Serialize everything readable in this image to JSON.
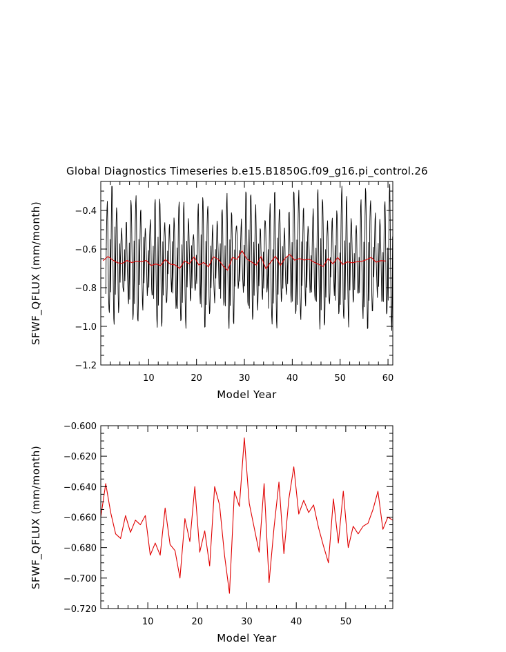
{
  "title": "Global Diagnostics Timeseries b.e15.B1850G.f09_g16.pi_control.26",
  "colors": {
    "monthly": "#000000",
    "annual": "#e00000",
    "axes": "#000000",
    "background": "#ffffff"
  },
  "chart_data": [
    {
      "type": "line",
      "xlabel": "Model Year",
      "ylabel": "SFWF_QFLUX (mm/month)",
      "xlim": [
        0.0,
        61.0
      ],
      "ylim": [
        -1.2,
        -0.25
      ],
      "xticks": [
        10,
        20,
        30,
        40,
        50,
        60
      ],
      "xtick_labels": [
        "10",
        "20",
        "30",
        "40",
        "50",
        "60"
      ],
      "yticks": [
        -1.2,
        -1.0,
        -0.8,
        -0.6,
        -0.4
      ],
      "ytick_labels": [
        "−1.2",
        "−1.0",
        "−0.8",
        "−0.6",
        "−0.4"
      ],
      "series": [
        {
          "color": "#000000",
          "x_start": 1.0417,
          "x_step": 0.08333,
          "seasonal_cycle": [
            -0.88,
            -0.72,
            -0.56,
            -0.46,
            -0.45,
            -0.56,
            -0.72,
            -0.86,
            -0.95,
            -0.96,
            -0.84,
            -0.63
          ],
          "annual_values": [
            -0.66,
            -0.638,
            -0.657,
            -0.671,
            -0.674,
            -0.659,
            -0.67,
            -0.662,
            -0.665,
            -0.659,
            -0.685,
            -0.677,
            -0.685,
            -0.654,
            -0.678,
            -0.682,
            -0.7,
            -0.661,
            -0.676,
            -0.64,
            -0.683,
            -0.669,
            -0.692,
            -0.64,
            -0.652,
            -0.685,
            -0.71,
            -0.643,
            -0.653,
            -0.608,
            -0.651,
            -0.667,
            -0.683,
            -0.638,
            -0.703,
            -0.667,
            -0.637,
            -0.684,
            -0.648,
            -0.627,
            -0.658,
            -0.649,
            -0.657,
            -0.652,
            -0.667,
            -0.679,
            -0.69,
            -0.648,
            -0.677,
            -0.643,
            -0.68,
            -0.666,
            -0.671,
            -0.666,
            -0.664,
            -0.655,
            -0.643,
            -0.668,
            -0.66,
            -0.662
          ]
        },
        {
          "color": "#e00000",
          "x": [
            0.5,
            1.5,
            2.5,
            3.5,
            4.5,
            5.5,
            6.5,
            7.5,
            8.5,
            9.5,
            10.5,
            11.5,
            12.5,
            13.5,
            14.5,
            15.5,
            16.5,
            17.5,
            18.5,
            19.5,
            20.5,
            21.5,
            22.5,
            23.5,
            24.5,
            25.5,
            26.5,
            27.5,
            28.5,
            29.5,
            30.5,
            31.5,
            32.5,
            33.5,
            34.5,
            35.5,
            36.5,
            37.5,
            38.5,
            39.5,
            40.5,
            41.5,
            42.5,
            43.5,
            44.5,
            45.5,
            46.5,
            47.5,
            48.5,
            49.5,
            50.5,
            51.5,
            52.5,
            53.5,
            54.5,
            55.5,
            56.5,
            57.5,
            58.5,
            59.5
          ],
          "values": [
            -0.66,
            -0.638,
            -0.657,
            -0.671,
            -0.674,
            -0.659,
            -0.67,
            -0.662,
            -0.665,
            -0.659,
            -0.685,
            -0.677,
            -0.685,
            -0.654,
            -0.678,
            -0.682,
            -0.7,
            -0.661,
            -0.676,
            -0.64,
            -0.683,
            -0.669,
            -0.692,
            -0.64,
            -0.652,
            -0.685,
            -0.71,
            -0.643,
            -0.653,
            -0.608,
            -0.651,
            -0.667,
            -0.683,
            -0.638,
            -0.703,
            -0.667,
            -0.637,
            -0.684,
            -0.648,
            -0.627,
            -0.658,
            -0.649,
            -0.657,
            -0.652,
            -0.667,
            -0.679,
            -0.69,
            -0.648,
            -0.677,
            -0.643,
            -0.68,
            -0.666,
            -0.671,
            -0.666,
            -0.664,
            -0.655,
            -0.643,
            -0.668,
            -0.66,
            -0.662
          ]
        }
      ]
    },
    {
      "type": "line",
      "xlabel": "Model Year",
      "ylabel": "SFWF_QFLUX (mm/month)",
      "xlim": [
        0.5,
        59.5
      ],
      "ylim": [
        -0.72,
        -0.6
      ],
      "xticks": [
        10,
        20,
        30,
        40,
        50
      ],
      "xtick_labels": [
        "10",
        "20",
        "30",
        "40",
        "50"
      ],
      "yticks": [
        -0.72,
        -0.7,
        -0.68,
        -0.66,
        -0.64,
        -0.62,
        -0.6
      ],
      "ytick_labels": [
        "−0.720",
        "−0.700",
        "−0.680",
        "−0.660",
        "−0.640",
        "−0.620",
        "−0.600"
      ],
      "series": [
        {
          "color": "#e00000",
          "x": [
            0.5,
            1.5,
            2.5,
            3.5,
            4.5,
            5.5,
            6.5,
            7.5,
            8.5,
            9.5,
            10.5,
            11.5,
            12.5,
            13.5,
            14.5,
            15.5,
            16.5,
            17.5,
            18.5,
            19.5,
            20.5,
            21.5,
            22.5,
            23.5,
            24.5,
            25.5,
            26.5,
            27.5,
            28.5,
            29.5,
            30.5,
            31.5,
            32.5,
            33.5,
            34.5,
            35.5,
            36.5,
            37.5,
            38.5,
            39.5,
            40.5,
            41.5,
            42.5,
            43.5,
            44.5,
            45.5,
            46.5,
            47.5,
            48.5,
            49.5,
            50.5,
            51.5,
            52.5,
            53.5,
            54.5,
            55.5,
            56.5,
            57.5,
            58.5,
            59.5
          ],
          "values": [
            -0.66,
            -0.638,
            -0.657,
            -0.671,
            -0.674,
            -0.659,
            -0.67,
            -0.662,
            -0.665,
            -0.659,
            -0.685,
            -0.677,
            -0.685,
            -0.654,
            -0.678,
            -0.682,
            -0.7,
            -0.661,
            -0.676,
            -0.64,
            -0.683,
            -0.669,
            -0.692,
            -0.64,
            -0.652,
            -0.685,
            -0.71,
            -0.643,
            -0.653,
            -0.608,
            -0.651,
            -0.667,
            -0.683,
            -0.638,
            -0.703,
            -0.667,
            -0.637,
            -0.684,
            -0.648,
            -0.627,
            -0.658,
            -0.649,
            -0.657,
            -0.652,
            -0.667,
            -0.679,
            -0.69,
            -0.648,
            -0.677,
            -0.643,
            -0.68,
            -0.666,
            -0.671,
            -0.666,
            -0.664,
            -0.655,
            -0.643,
            -0.668,
            -0.66,
            -0.662
          ]
        }
      ]
    }
  ]
}
